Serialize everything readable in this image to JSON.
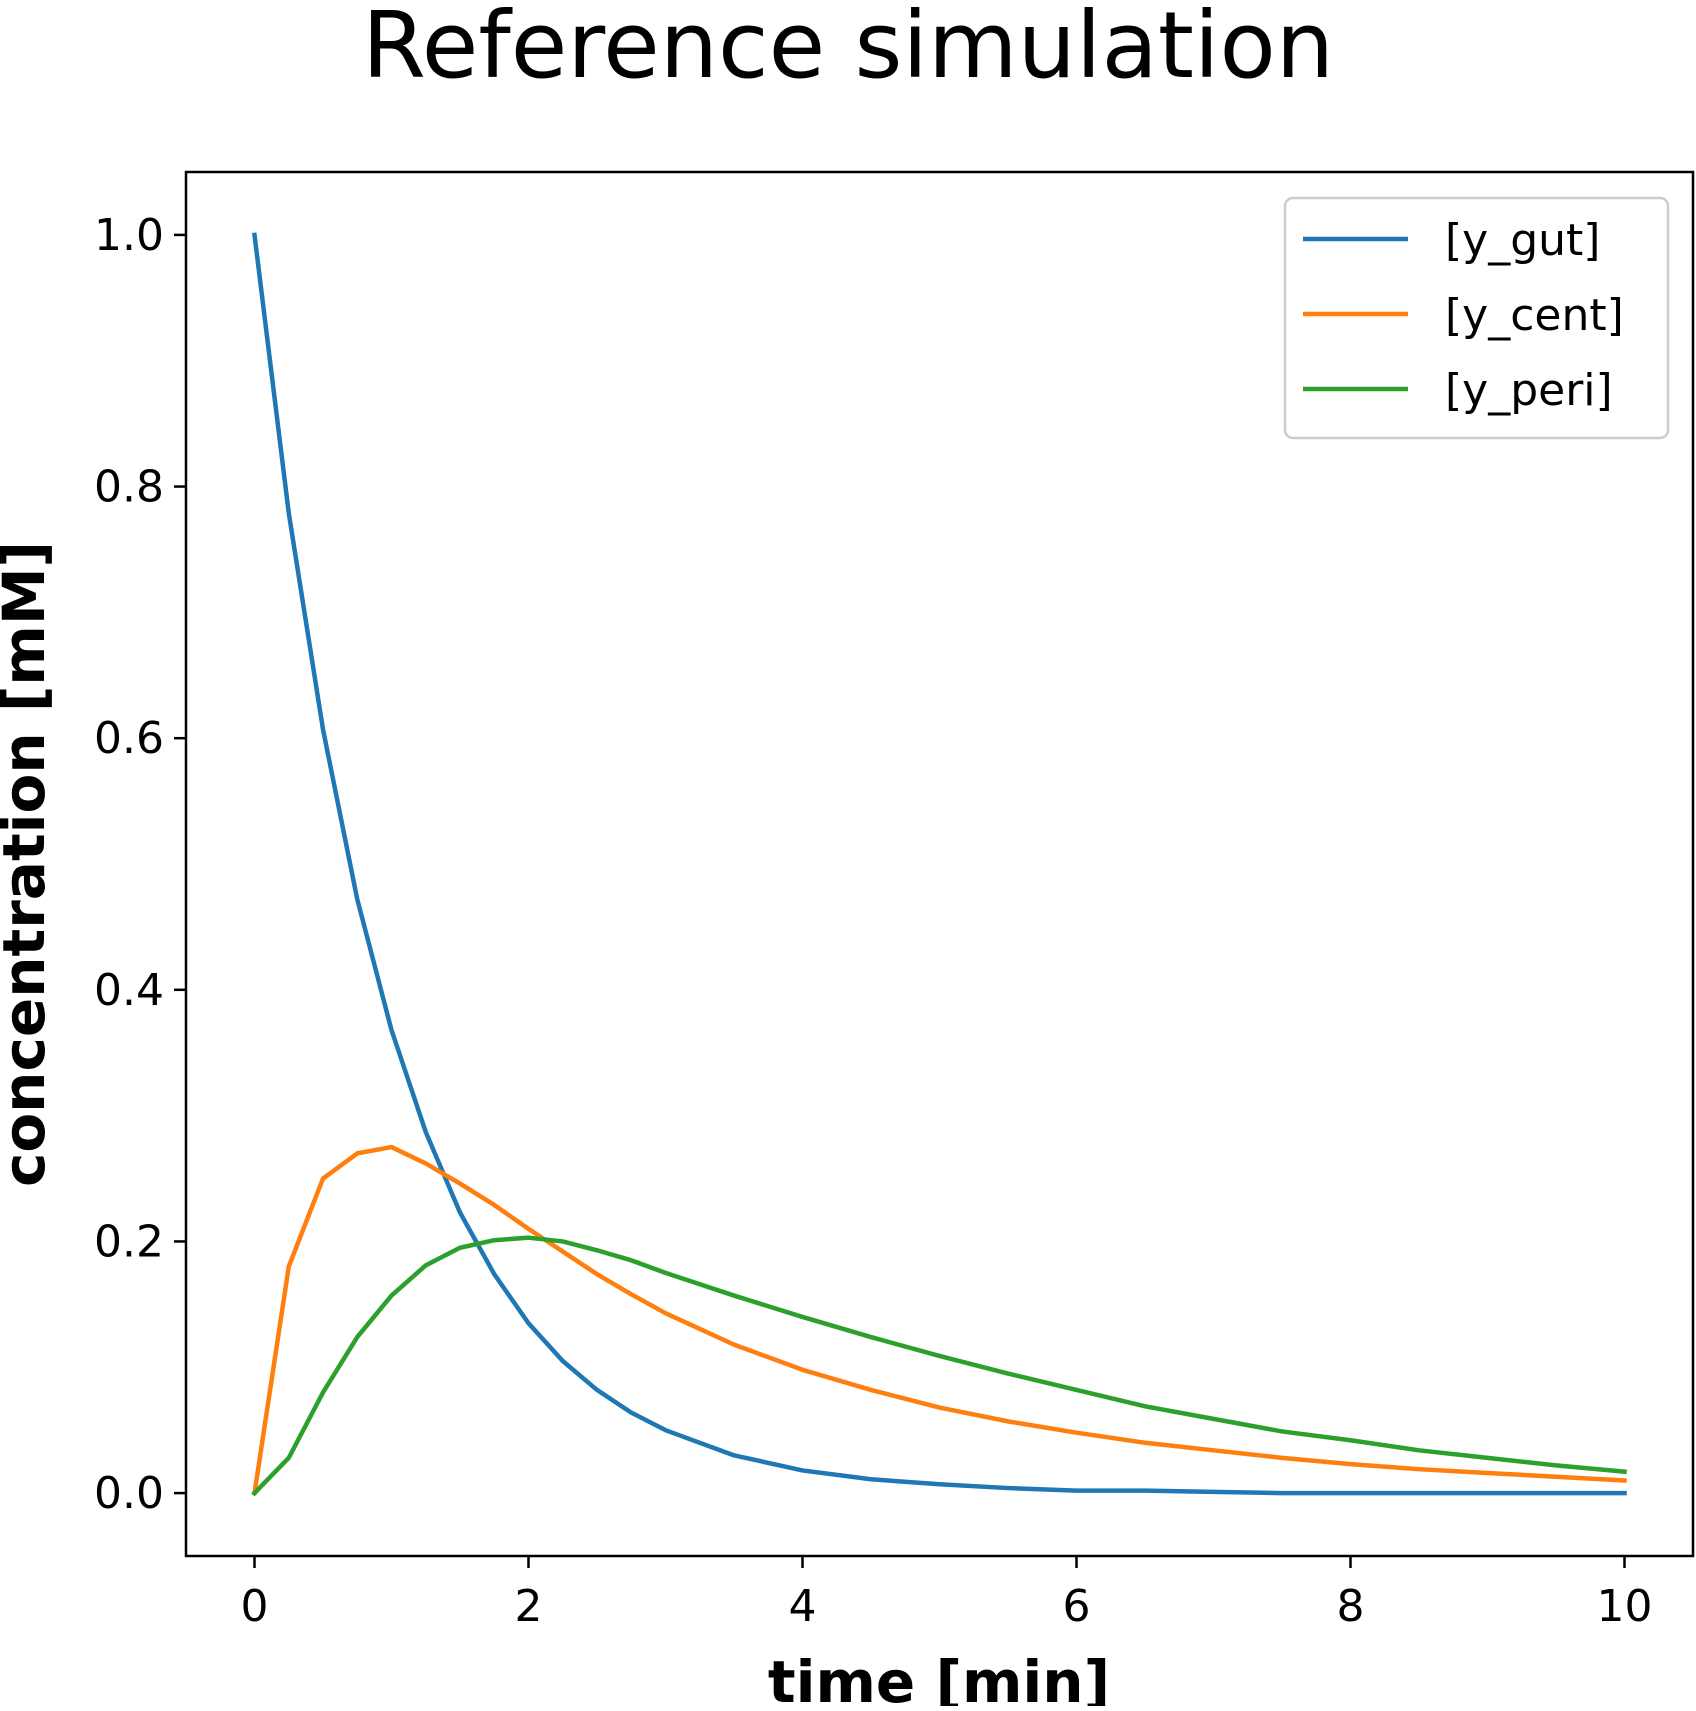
{
  "chart_data": {
    "type": "line",
    "title": "Reference simulation",
    "xlabel": "time [min]",
    "ylabel": "concentration [mM]",
    "xlim": [
      -0.5,
      10.5
    ],
    "ylim": [
      -0.05,
      1.05
    ],
    "xticks": [
      0,
      2,
      4,
      6,
      8,
      10
    ],
    "xtick_labels": [
      "0",
      "2",
      "4",
      "6",
      "8",
      "10"
    ],
    "yticks": [
      0.0,
      0.2,
      0.4,
      0.6,
      0.8,
      1.0
    ],
    "ytick_labels": [
      "0.0",
      "0.2",
      "0.4",
      "0.6",
      "0.8",
      "1.0"
    ],
    "grid": false,
    "legend_position": "top-right",
    "x": [
      0,
      0.25,
      0.5,
      0.75,
      1.0,
      1.25,
      1.5,
      1.75,
      2.0,
      2.25,
      2.5,
      2.75,
      3.0,
      3.5,
      4.0,
      4.5,
      5.0,
      5.5,
      6.0,
      6.5,
      7.0,
      7.5,
      8.0,
      8.5,
      9.0,
      9.5,
      10.0
    ],
    "series": [
      {
        "name": "[y_gut]",
        "color": "#1f77b4",
        "values": [
          1.0,
          0.779,
          0.607,
          0.472,
          0.368,
          0.287,
          0.223,
          0.174,
          0.135,
          0.105,
          0.082,
          0.064,
          0.05,
          0.03,
          0.018,
          0.011,
          0.007,
          0.004,
          0.002,
          0.002,
          0.001,
          0.0,
          0.0,
          0.0,
          0.0,
          0.0,
          0.0
        ]
      },
      {
        "name": "[y_cent]",
        "color": "#ff7f0e",
        "values": [
          0.0,
          0.18,
          0.25,
          0.27,
          0.275,
          0.262,
          0.246,
          0.229,
          0.21,
          0.192,
          0.174,
          0.158,
          0.143,
          0.118,
          0.098,
          0.082,
          0.068,
          0.057,
          0.048,
          0.04,
          0.034,
          0.028,
          0.023,
          0.019,
          0.016,
          0.013,
          0.01
        ]
      },
      {
        "name": "[y_peri]",
        "color": "#2ca02c",
        "values": [
          0.0,
          0.028,
          0.08,
          0.124,
          0.157,
          0.181,
          0.195,
          0.201,
          0.203,
          0.2,
          0.193,
          0.185,
          0.175,
          0.157,
          0.14,
          0.124,
          0.109,
          0.095,
          0.082,
          0.069,
          0.059,
          0.049,
          0.042,
          0.034,
          0.028,
          0.022,
          0.017
        ]
      }
    ]
  }
}
